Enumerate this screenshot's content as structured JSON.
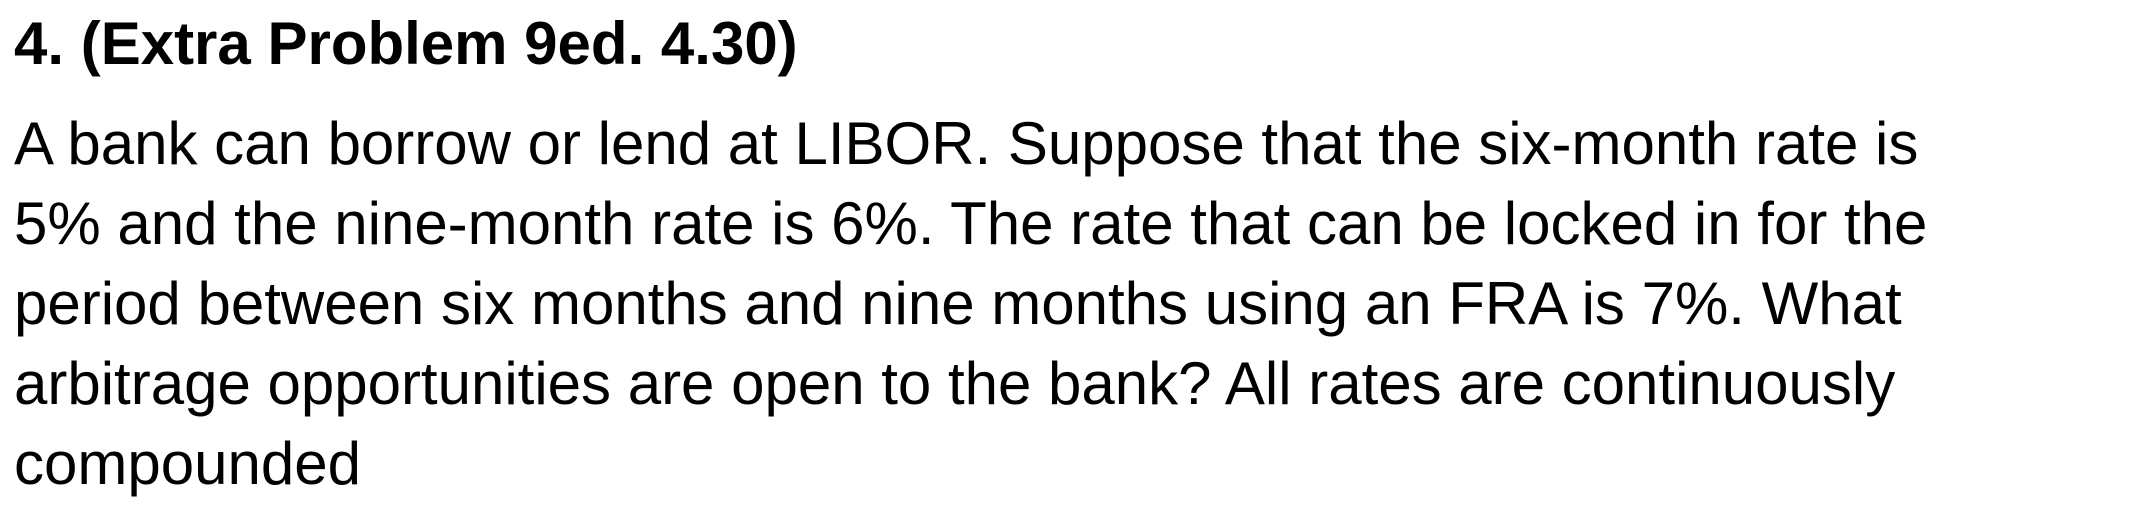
{
  "document": {
    "heading": "4. (Extra Problem 9ed. 4.30)",
    "body_lines": [
      "A bank can borrow or lend at LIBOR. Suppose that the six-month rate is",
      "5% and the nine-month rate is 6%. The rate that can be locked in for the",
      "period between six months and nine months using an FRA is 7%. What",
      "arbitrage opportunities are open to the bank? All rates are continuously",
      "compounded"
    ]
  },
  "colors": {
    "background": "#ffffff",
    "text": "#000000"
  }
}
